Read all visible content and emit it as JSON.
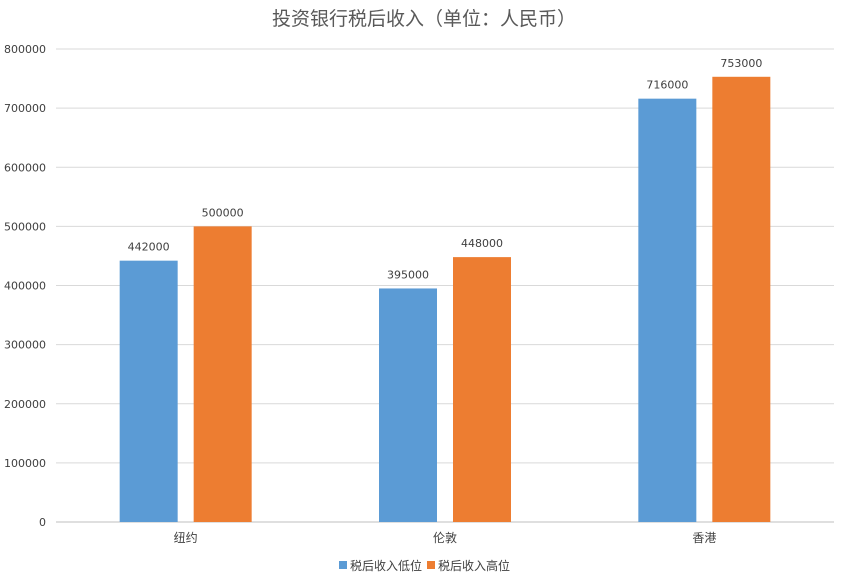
{
  "chart_data": {
    "type": "bar",
    "title": "投资银行税后收入（单位：人民币）",
    "categories": [
      "纽约",
      "伦敦",
      "香港"
    ],
    "series": [
      {
        "name": "税后收入低位",
        "values": [
          442000,
          395000,
          716000
        ],
        "color": "#5B9BD5"
      },
      {
        "name": "税后收入高位",
        "values": [
          500000,
          448000,
          753000
        ],
        "color": "#ED7D31"
      }
    ],
    "yticks": [
      "0",
      "100000",
      "200000",
      "300000",
      "400000",
      "500000",
      "600000",
      "700000",
      "800000"
    ],
    "ylim": [
      0,
      800000
    ],
    "grid": true,
    "legend": "bottom"
  }
}
